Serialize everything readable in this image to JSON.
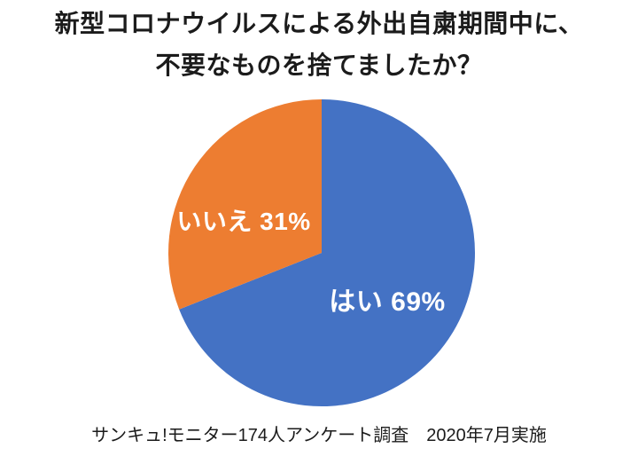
{
  "page": {
    "background": "#ffffff"
  },
  "title": {
    "line1": "新型コロナウイルスによる外出自粛期間中に、",
    "line2": "不要なものを捨てましたか？"
  },
  "chart_data": {
    "type": "pie",
    "title": "新型コロナウイルスによる外出自粛期間中に、不要なものを捨てましたか？",
    "categories": [
      "はい",
      "いいえ"
    ],
    "values": [
      69,
      31
    ],
    "unit": "%",
    "slices": [
      {
        "id": "yes",
        "label": "はい",
        "value": 69,
        "display": "はい 69%",
        "color": "#4472C4"
      },
      {
        "id": "no",
        "label": "いいえ",
        "value": 31,
        "display": "いいえ 31%",
        "color": "#ED7D31"
      }
    ],
    "start_angle": "top",
    "direction": "clockwise",
    "legend_position": "none",
    "data_labels": "inside-white"
  },
  "footer": {
    "source_note": "サンキュ!モニター174人アンケート調査　2020年7月実施"
  }
}
